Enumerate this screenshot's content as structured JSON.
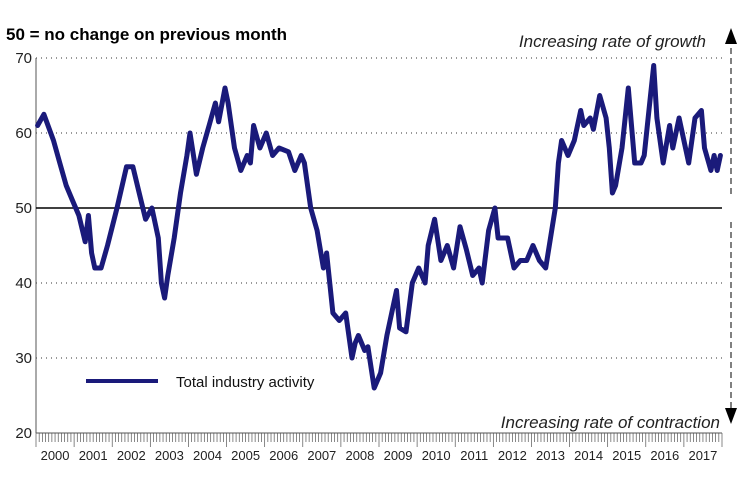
{
  "chart_data": {
    "type": "line",
    "title": "50 = no change on previous month",
    "annotations": {
      "top": "Increasing rate of growth",
      "bottom": "Increasing rate of contraction"
    },
    "xlabel": "",
    "ylabel": "",
    "ylim": [
      20,
      70
    ],
    "yticks": [
      20,
      30,
      40,
      50,
      60,
      70
    ],
    "reference_line": 50,
    "x_categories": [
      "2000",
      "2001",
      "2002",
      "2003",
      "2004",
      "2005",
      "2006",
      "2007",
      "2008",
      "2009",
      "2010",
      "2011",
      "2012",
      "2013",
      "2014",
      "2015",
      "2016",
      "2017"
    ],
    "legend_position": "bottom-left",
    "colors": {
      "series": "#1a1a7a",
      "reference": "#000000",
      "axis": "#555555"
    },
    "series": [
      {
        "name": "Total industry activity",
        "points": [
          [
            "2000-01",
            61
          ],
          [
            "2000-03",
            62.5
          ],
          [
            "2000-06",
            59
          ],
          [
            "2000-08",
            56
          ],
          [
            "2000-10",
            53
          ],
          [
            "2000-12",
            51
          ],
          [
            "2001-02",
            49
          ],
          [
            "2001-04",
            45.5
          ],
          [
            "2001-05",
            49
          ],
          [
            "2001-06",
            44
          ],
          [
            "2001-07",
            42
          ],
          [
            "2001-09",
            42
          ],
          [
            "2001-11",
            45
          ],
          [
            "2002-02",
            50
          ],
          [
            "2002-05",
            55.5
          ],
          [
            "2002-07",
            55.5
          ],
          [
            "2002-09",
            52
          ],
          [
            "2002-11",
            48.5
          ],
          [
            "2003-01",
            50
          ],
          [
            "2003-03",
            46
          ],
          [
            "2003-04",
            40
          ],
          [
            "2003-05",
            38
          ],
          [
            "2003-06",
            41
          ],
          [
            "2003-08",
            46
          ],
          [
            "2003-10",
            52
          ],
          [
            "2003-12",
            57
          ],
          [
            "2004-01",
            60
          ],
          [
            "2004-03",
            54.5
          ],
          [
            "2004-05",
            58
          ],
          [
            "2004-07",
            61
          ],
          [
            "2004-09",
            64
          ],
          [
            "2004-10",
            61.5
          ],
          [
            "2004-12",
            66
          ],
          [
            "2005-01",
            64
          ],
          [
            "2005-03",
            58
          ],
          [
            "2005-05",
            55
          ],
          [
            "2005-07",
            57
          ],
          [
            "2005-08",
            56
          ],
          [
            "2005-09",
            61
          ],
          [
            "2005-11",
            58
          ],
          [
            "2006-01",
            60
          ],
          [
            "2006-03",
            57
          ],
          [
            "2006-05",
            58
          ],
          [
            "2006-08",
            57.5
          ],
          [
            "2006-10",
            55
          ],
          [
            "2006-12",
            57
          ],
          [
            "2007-01",
            56
          ],
          [
            "2007-03",
            50
          ],
          [
            "2007-05",
            47
          ],
          [
            "2007-07",
            42
          ],
          [
            "2007-08",
            44
          ],
          [
            "2007-10",
            36
          ],
          [
            "2007-12",
            35
          ],
          [
            "2008-02",
            36
          ],
          [
            "2008-04",
            30
          ],
          [
            "2008-05",
            32
          ],
          [
            "2008-06",
            33
          ],
          [
            "2008-08",
            31
          ],
          [
            "2008-09",
            31.5
          ],
          [
            "2008-11",
            26
          ],
          [
            "2009-01",
            28
          ],
          [
            "2009-03",
            33
          ],
          [
            "2009-05",
            37
          ],
          [
            "2009-06",
            39
          ],
          [
            "2009-07",
            34
          ],
          [
            "2009-09",
            33.5
          ],
          [
            "2009-11",
            40
          ],
          [
            "2010-01",
            42
          ],
          [
            "2010-03",
            40
          ],
          [
            "2010-04",
            45
          ],
          [
            "2010-06",
            48.5
          ],
          [
            "2010-08",
            43
          ],
          [
            "2010-10",
            45
          ],
          [
            "2010-12",
            42
          ],
          [
            "2011-02",
            47.5
          ],
          [
            "2011-04",
            44.5
          ],
          [
            "2011-06",
            41
          ],
          [
            "2011-08",
            42
          ],
          [
            "2011-09",
            40
          ],
          [
            "2011-11",
            47
          ],
          [
            "2012-01",
            50
          ],
          [
            "2012-02",
            46
          ],
          [
            "2012-05",
            46
          ],
          [
            "2012-07",
            42
          ],
          [
            "2012-09",
            43
          ],
          [
            "2012-11",
            43
          ],
          [
            "2013-01",
            45
          ],
          [
            "2013-03",
            43
          ],
          [
            "2013-05",
            42
          ],
          [
            "2013-08",
            50
          ],
          [
            "2013-09",
            56
          ],
          [
            "2013-10",
            59
          ],
          [
            "2013-12",
            57
          ],
          [
            "2014-02",
            59
          ],
          [
            "2014-04",
            63
          ],
          [
            "2014-05",
            61
          ],
          [
            "2014-07",
            62
          ],
          [
            "2014-08",
            60.5
          ],
          [
            "2014-10",
            65
          ],
          [
            "2014-12",
            62
          ],
          [
            "2015-01",
            58
          ],
          [
            "2015-02",
            52
          ],
          [
            "2015-03",
            53
          ],
          [
            "2015-05",
            58
          ],
          [
            "2015-07",
            66
          ],
          [
            "2015-09",
            56
          ],
          [
            "2015-11",
            56
          ],
          [
            "2015-12",
            57
          ],
          [
            "2016-02",
            65
          ],
          [
            "2016-03",
            69
          ],
          [
            "2016-04",
            62
          ],
          [
            "2016-06",
            56
          ],
          [
            "2016-08",
            61
          ],
          [
            "2016-09",
            58
          ],
          [
            "2016-11",
            62
          ],
          [
            "2017-01",
            58
          ],
          [
            "2017-02",
            56
          ],
          [
            "2017-04",
            62
          ],
          [
            "2017-06",
            63
          ],
          [
            "2017-07",
            58
          ],
          [
            "2017-09",
            55
          ],
          [
            "2017-10",
            57
          ],
          [
            "2017-11",
            55
          ],
          [
            "2017-12",
            57
          ]
        ]
      }
    ]
  }
}
